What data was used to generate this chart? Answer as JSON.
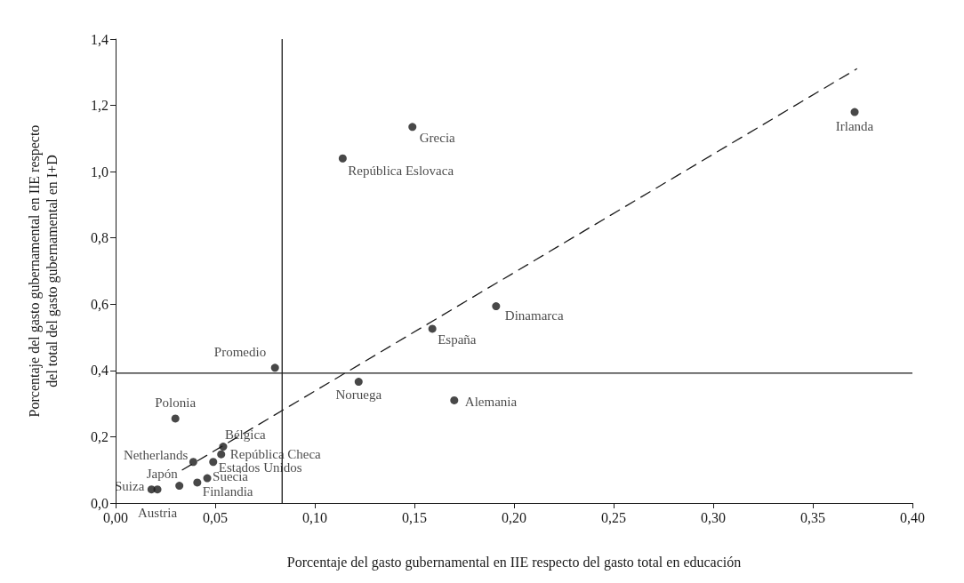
{
  "chart_data": {
    "type": "scatter",
    "xlabel": "Porcentaje del gasto gubernamental en IIE respecto del gasto total en educación",
    "ylabel": "Porcentaje del gasto gubernamental en IIE respecto\ndel total del gasto gubernamental en I+D",
    "xlim": [
      0,
      0.4
    ],
    "xticks": [
      {
        "value": 0,
        "label": "0,00"
      },
      {
        "value": 0.05,
        "label": "0,05"
      },
      {
        "value": 0.1,
        "label": "0,10"
      },
      {
        "value": 0.15,
        "label": "0,15"
      },
      {
        "value": 0.2,
        "label": "0,20"
      },
      {
        "value": 0.25,
        "label": "0,25"
      },
      {
        "value": 0.3,
        "label": "0,30"
      },
      {
        "value": 0.35,
        "label": "0,35"
      },
      {
        "value": 0.4,
        "label": "0,40"
      }
    ],
    "ylim": [
      0,
      1.4
    ],
    "yticks": [
      {
        "value": 0,
        "label": "0,0"
      },
      {
        "value": 0.2,
        "label": "0,2"
      },
      {
        "value": 0.4,
        "label": "0,4"
      },
      {
        "value": 0.6,
        "label": "0,6"
      },
      {
        "value": 0.8,
        "label": "0,8"
      },
      {
        "value": 1.0,
        "label": "1,0"
      },
      {
        "value": 1.2,
        "label": "1,2"
      },
      {
        "value": 1.4,
        "label": "1,4"
      }
    ],
    "grid": false,
    "series": [
      {
        "type": "scatter",
        "color": "#1a1a1a",
        "marker": "circle",
        "x": [
          0.371,
          0.149,
          0.114,
          0.191,
          0.159,
          0.08,
          0.122,
          0.17,
          0.03,
          0.054,
          0.053,
          0.039,
          0.049,
          0.046,
          0.041,
          0.032,
          0.018,
          0.021
        ],
        "values": [
          1.18,
          1.135,
          1.04,
          0.594,
          0.526,
          0.408,
          0.366,
          0.31,
          0.255,
          0.17,
          0.147,
          0.124,
          0.124,
          0.075,
          0.062,
          0.052,
          0.041,
          0.041
        ]
      },
      {
        "type": "line",
        "color": "#1a1a1a",
        "marker": "none",
        "line_style": "dashed",
        "x": [
          0.0335,
          0.372
        ],
        "values": [
          0.1,
          1.31
        ]
      }
    ],
    "ref_lines": [
      {
        "axis": "x",
        "value": 0.0836,
        "color": "#1a1a1a",
        "line_style": "solid"
      },
      {
        "axis": "y",
        "value": 0.392,
        "color": "#1a1a1a",
        "line_style": "solid"
      }
    ],
    "annotations": [
      {
        "text": "Irlanda",
        "x": 0.371,
        "y": 1.18
      },
      {
        "text": "Grecia",
        "x": 0.149,
        "y": 1.135
      },
      {
        "text": "República Eslovaca",
        "x": 0.114,
        "y": 1.04
      },
      {
        "text": "Dinamarca",
        "x": 0.191,
        "y": 0.594
      },
      {
        "text": "España",
        "x": 0.159,
        "y": 0.526
      },
      {
        "text": "Promedio",
        "x": 0.08,
        "y": 0.408
      },
      {
        "text": "Noruega",
        "x": 0.122,
        "y": 0.366
      },
      {
        "text": "Alemania",
        "x": 0.17,
        "y": 0.31
      },
      {
        "text": "Polonia",
        "x": 0.03,
        "y": 0.255
      },
      {
        "text": "Bélgica",
        "x": 0.054,
        "y": 0.17
      },
      {
        "text": "República Checa",
        "x": 0.053,
        "y": 0.147
      },
      {
        "text": "Netherlands",
        "x": 0.039,
        "y": 0.124
      },
      {
        "text": "Estados Unidos",
        "x": 0.049,
        "y": 0.124
      },
      {
        "text": "Suecia",
        "x": 0.046,
        "y": 0.075
      },
      {
        "text": "Finlandia",
        "x": 0.041,
        "y": 0.062
      },
      {
        "text": "Japón",
        "x": 0.032,
        "y": 0.052
      },
      {
        "text": "Suiza",
        "x": 0.018,
        "y": 0.041
      },
      {
        "text": "Austria",
        "x": 0.021,
        "y": 0.041
      }
    ]
  }
}
